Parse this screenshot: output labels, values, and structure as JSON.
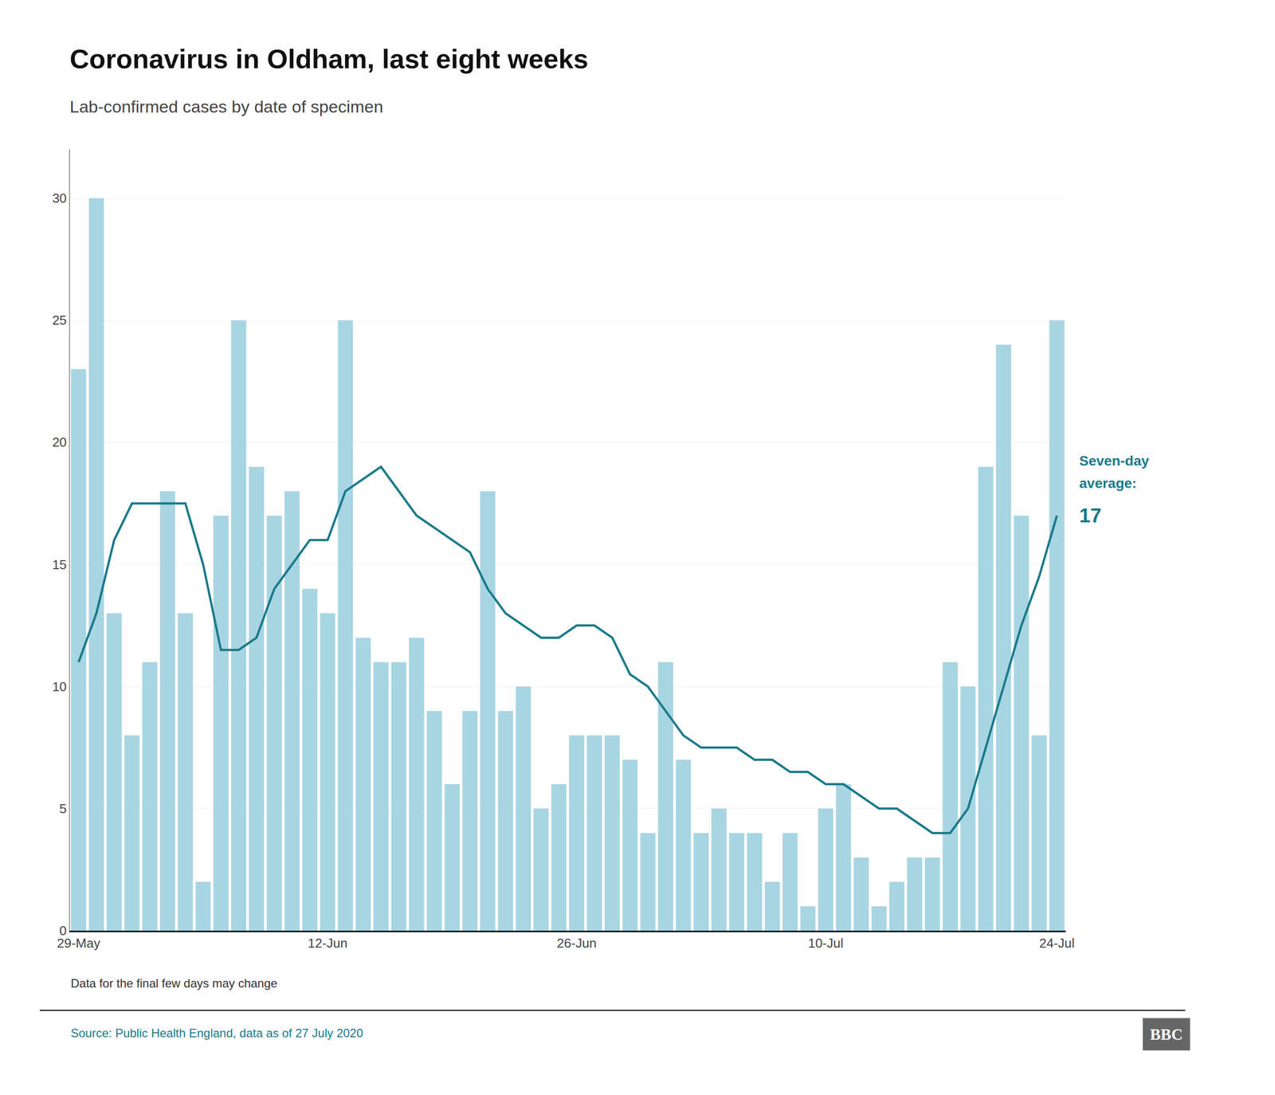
{
  "chart_data": {
    "type": "bar",
    "title": "Coronavirus in Oldham, last eight weeks",
    "subtitle": "Lab-confirmed cases by date of specimen",
    "annotations": [
      "Seven-day",
      "average:",
      "17"
    ],
    "footnote": "Data for the final few days may change",
    "source": "Source: Public Health England, data as of 27 July 2020",
    "logo": "BBC",
    "categories": [
      "29-May",
      null,
      null,
      null,
      null,
      null,
      null,
      null,
      null,
      null,
      null,
      null,
      null,
      null,
      "12-Jun",
      null,
      null,
      null,
      null,
      null,
      null,
      null,
      null,
      null,
      null,
      null,
      null,
      null,
      "26-Jun",
      null,
      null,
      null,
      null,
      null,
      null,
      null,
      null,
      null,
      null,
      null,
      null,
      null,
      "10-Jul",
      null,
      null,
      null,
      null,
      null,
      null,
      null,
      null,
      null,
      null,
      null,
      null,
      "24-Jul"
    ],
    "series": [
      {
        "type": "bar",
        "color": "#a8d5e2",
        "values": [
          23,
          30,
          13,
          8,
          11,
          18,
          13,
          2,
          17,
          25,
          19,
          17,
          18,
          14,
          13,
          25,
          12,
          11,
          11,
          12,
          9,
          6,
          9,
          18,
          9,
          10,
          5,
          6,
          8,
          8,
          8,
          7,
          4,
          11,
          7,
          4,
          5,
          4,
          4,
          2,
          4,
          1,
          5,
          6,
          3,
          1,
          2,
          3,
          3,
          11,
          10,
          19,
          24,
          17,
          8,
          25
        ]
      },
      {
        "type": "line",
        "color": "#1a7a8a",
        "values": [
          11,
          13,
          16,
          17.5,
          17.5,
          17.5,
          17.5,
          15,
          11.5,
          11.5,
          12,
          14,
          15,
          16,
          16,
          18,
          18.5,
          19,
          18,
          17,
          16.5,
          16,
          15.5,
          14,
          13,
          12.5,
          12,
          12,
          12.5,
          12.5,
          12,
          10.5,
          10,
          9,
          8,
          7.5,
          7.5,
          7.5,
          7,
          7,
          6.5,
          6.5,
          6,
          6,
          5.5,
          5,
          5,
          4.5,
          4,
          4,
          5,
          7.5,
          10,
          12.5,
          14.5,
          17
        ]
      }
    ],
    "ylim": [
      0,
      32
    ],
    "yticks": [
      0,
      5,
      10,
      15,
      20,
      25,
      30
    ],
    "grid": true
  }
}
